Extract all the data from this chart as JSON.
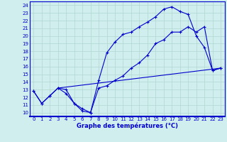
{
  "title": "Graphe des températures (°C)",
  "bg_color": "#d0eeee",
  "plot_bg_color": "#d0eeee",
  "line_color": "#0000cc",
  "grid_color": "#b0d8d0",
  "x_ticks": [
    0,
    1,
    2,
    3,
    4,
    5,
    6,
    7,
    8,
    9,
    10,
    11,
    12,
    13,
    14,
    15,
    16,
    17,
    18,
    19,
    20,
    21,
    22,
    23
  ],
  "y_ticks": [
    10,
    11,
    12,
    13,
    14,
    15,
    16,
    17,
    18,
    19,
    20,
    21,
    22,
    23,
    24
  ],
  "xlim": [
    -0.5,
    23.5
  ],
  "ylim": [
    9.5,
    24.5
  ],
  "line1_x": [
    0,
    1,
    2,
    3,
    4,
    5,
    6,
    7,
    8,
    9,
    10,
    11,
    12,
    13,
    14,
    15,
    16,
    17,
    18,
    19,
    20,
    21,
    22,
    23
  ],
  "line1_y": [
    12.8,
    11.2,
    12.2,
    13.2,
    13.0,
    11.2,
    10.2,
    10.0,
    13.2,
    13.5,
    14.2,
    14.8,
    15.8,
    16.5,
    17.5,
    19.0,
    19.5,
    20.5,
    20.5,
    21.2,
    20.5,
    21.2,
    15.5,
    15.8
  ],
  "line2_x": [
    0,
    1,
    2,
    3,
    4,
    5,
    6,
    7,
    8,
    9,
    10,
    11,
    12,
    13,
    14,
    15,
    16,
    17,
    18,
    19,
    20,
    21,
    22,
    23
  ],
  "line2_y": [
    12.8,
    11.2,
    12.2,
    13.2,
    12.5,
    11.2,
    10.5,
    10.0,
    14.2,
    17.8,
    19.2,
    20.2,
    20.5,
    21.2,
    21.8,
    22.5,
    23.5,
    23.8,
    23.2,
    22.8,
    20.0,
    18.5,
    15.5,
    15.8
  ],
  "line3_x": [
    3,
    23
  ],
  "line3_y": [
    13.2,
    15.8
  ],
  "marker_size": 3.0,
  "linewidth": 0.8,
  "tick_fontsize": 5.0,
  "label_fontsize": 6.0
}
